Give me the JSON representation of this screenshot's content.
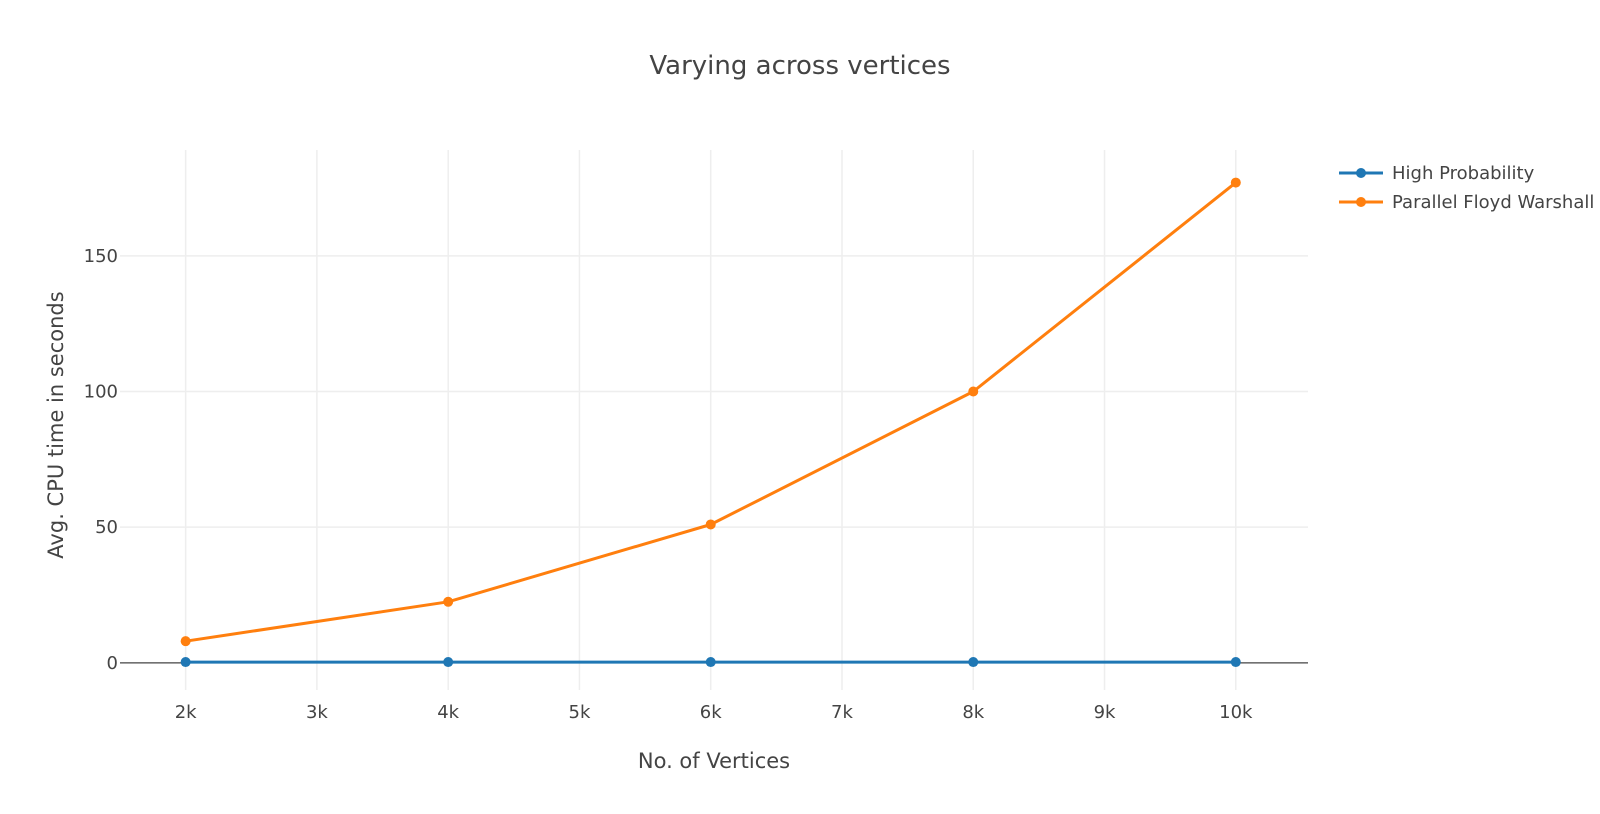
{
  "chart_data": {
    "type": "line",
    "title": "Varying across vertices",
    "xlabel": "No. of Vertices",
    "ylabel": "Avg. CPU time  in seconds",
    "x": [
      2000,
      4000,
      6000,
      8000,
      10000
    ],
    "x_ticks": [
      {
        "value": 2000,
        "label": "2k"
      },
      {
        "value": 3000,
        "label": "3k"
      },
      {
        "value": 4000,
        "label": "4k"
      },
      {
        "value": 5000,
        "label": "5k"
      },
      {
        "value": 6000,
        "label": "6k"
      },
      {
        "value": 7000,
        "label": "7k"
      },
      {
        "value": 8000,
        "label": "8k"
      },
      {
        "value": 9000,
        "label": "9k"
      },
      {
        "value": 10000,
        "label": "10k"
      }
    ],
    "y_ticks": [
      {
        "value": 0,
        "label": "0"
      },
      {
        "value": 50,
        "label": "50"
      },
      {
        "value": 100,
        "label": "100"
      },
      {
        "value": 150,
        "label": "150"
      }
    ],
    "xlim": [
      1500,
      10550
    ],
    "ylim": [
      -10,
      189
    ],
    "grid": true,
    "legend_position": "top-right",
    "series": [
      {
        "name": "High Probability",
        "color": "#1f77b4",
        "values": [
          0.3,
          0.3,
          0.3,
          0.3,
          0.3
        ]
      },
      {
        "name": "Parallel Floyd Warshall",
        "color": "#ff7f0e",
        "values": [
          8,
          22.5,
          51,
          100,
          177
        ]
      }
    ]
  }
}
